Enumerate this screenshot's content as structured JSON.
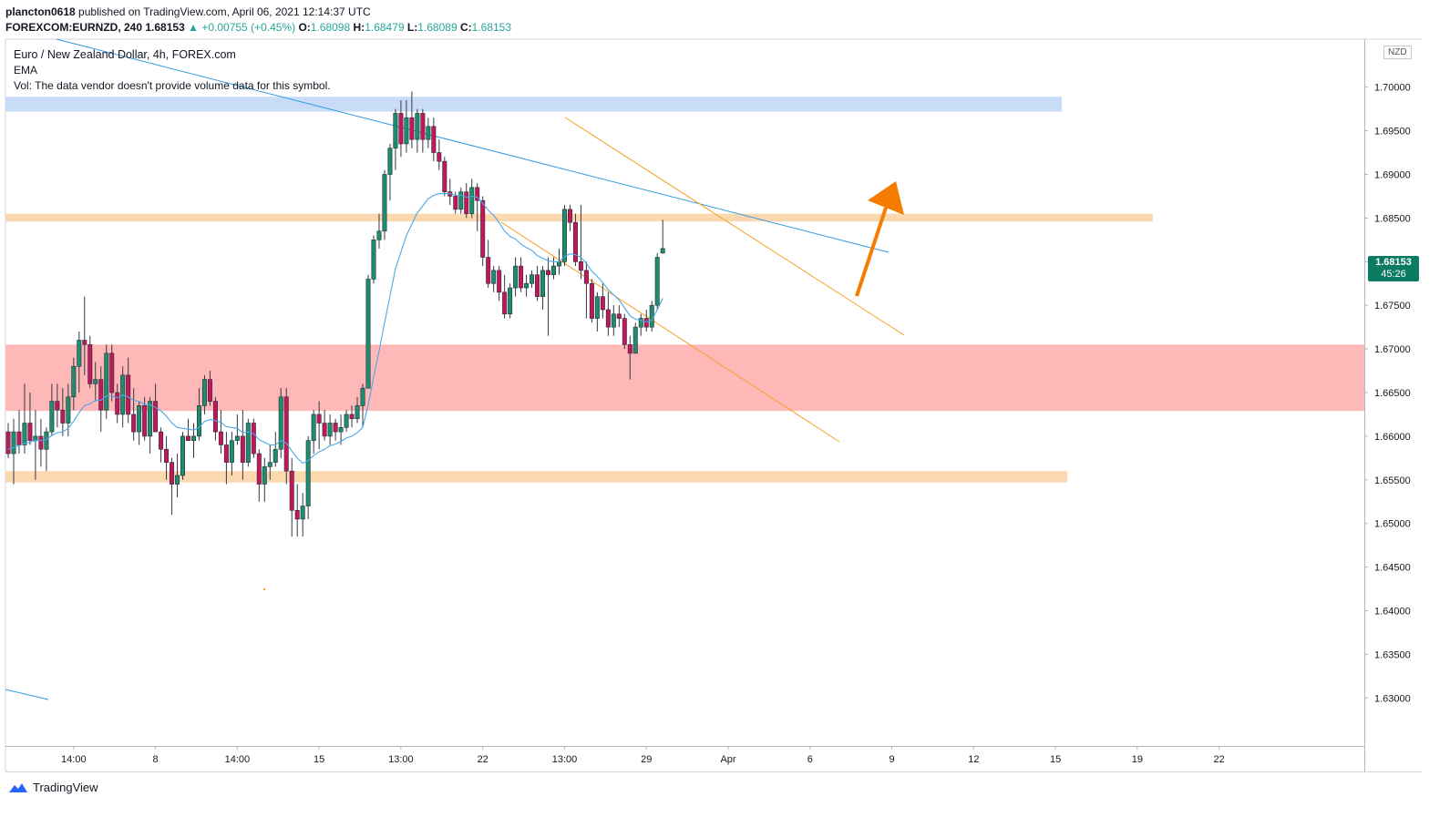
{
  "header": {
    "user": "plancton0618",
    "published": "published on TradingView.com, April 06, 2021 12:14:37 UTC",
    "symbol": "FOREXCOM:EURNZD, 240",
    "last": "1.68153",
    "arrow": "▲",
    "change": "+0.00755 (+0.45%)",
    "o_label": "O:",
    "o": "1.68098",
    "h_label": "H:",
    "h": "1.68479",
    "l_label": "L:",
    "l": "1.68089",
    "c_label": "C:",
    "c": "1.68153"
  },
  "legend": {
    "title": "Euro / New Zealand Dollar, 4h, FOREX.com",
    "ema": "EMA",
    "vol": "Vol: The data vendor doesn't provide volume data for this symbol."
  },
  "currency": "NZD",
  "price_tag": {
    "price": "1.68153",
    "countdown": "45:26"
  },
  "brand": "TradingView",
  "colors": {
    "up": "#26a69a",
    "down": "#ef5350",
    "candle_body_up": "#1e8c6e",
    "candle_body_down": "#c2185b",
    "ema": "#4aa8e6",
    "channel": "#f7a024",
    "trend": "#2f9be3",
    "zone_blue": "#c9dcf7",
    "zone_orange": "#fbd8b0",
    "zone_red": "#ffb8b8",
    "arrow": "#f57c00"
  },
  "chart_data": {
    "type": "candlestick",
    "title": "Euro / New Zealand Dollar, 4h, FOREX.com",
    "y_axis_side": "right",
    "ylim": [
      1.6245,
      1.7055
    ],
    "y_ticks": [
      "1.70000",
      "1.69500",
      "1.69000",
      "1.68500",
      "1.68000",
      "1.67500",
      "1.67000",
      "1.66500",
      "1.66000",
      "1.65500",
      "1.65000",
      "1.64500",
      "1.64000",
      "1.63500",
      "1.63000"
    ],
    "x_ticks": [
      "14:00",
      "8",
      "14:00",
      "15",
      "13:00",
      "22",
      "13:00",
      "29",
      "Apr",
      "6",
      "9",
      "12",
      "15",
      "19",
      "22"
    ],
    "x_tick_index": [
      12,
      27,
      42,
      57,
      72,
      87,
      102,
      117,
      132,
      147,
      162,
      177,
      192,
      207,
      222
    ],
    "candles": [
      [
        1.6605,
        1.6615,
        1.6575,
        1.658
      ],
      [
        1.658,
        1.662,
        1.6545,
        1.6605
      ],
      [
        1.6605,
        1.663,
        1.658,
        1.659
      ],
      [
        1.659,
        1.666,
        1.658,
        1.6615
      ],
      [
        1.6615,
        1.665,
        1.659,
        1.6595
      ],
      [
        1.6595,
        1.663,
        1.655,
        1.66
      ],
      [
        1.66,
        1.662,
        1.6565,
        1.6585
      ],
      [
        1.6585,
        1.661,
        1.656,
        1.6605
      ],
      [
        1.6605,
        1.666,
        1.66,
        1.664
      ],
      [
        1.664,
        1.666,
        1.661,
        1.663
      ],
      [
        1.663,
        1.6655,
        1.66,
        1.6615
      ],
      [
        1.6615,
        1.666,
        1.66,
        1.6645
      ],
      [
        1.6645,
        1.669,
        1.663,
        1.668
      ],
      [
        1.668,
        1.672,
        1.665,
        1.671
      ],
      [
        1.671,
        1.676,
        1.667,
        1.6705
      ],
      [
        1.6705,
        1.6715,
        1.6655,
        1.666
      ],
      [
        1.666,
        1.6685,
        1.664,
        1.6665
      ],
      [
        1.6665,
        1.668,
        1.6605,
        1.663
      ],
      [
        1.663,
        1.6705,
        1.662,
        1.6695
      ],
      [
        1.6695,
        1.6705,
        1.664,
        1.665
      ],
      [
        1.665,
        1.666,
        1.6615,
        1.6625
      ],
      [
        1.6625,
        1.668,
        1.661,
        1.667
      ],
      [
        1.667,
        1.669,
        1.6615,
        1.6625
      ],
      [
        1.6625,
        1.6655,
        1.6595,
        1.6605
      ],
      [
        1.6605,
        1.664,
        1.659,
        1.6635
      ],
      [
        1.6635,
        1.6645,
        1.6595,
        1.66
      ],
      [
        1.66,
        1.6645,
        1.658,
        1.664
      ],
      [
        1.664,
        1.666,
        1.6605,
        1.6605
      ],
      [
        1.6605,
        1.661,
        1.657,
        1.6585
      ],
      [
        1.6585,
        1.66,
        1.655,
        1.657
      ],
      [
        1.657,
        1.6575,
        1.651,
        1.6545
      ],
      [
        1.6545,
        1.658,
        1.653,
        1.6555
      ],
      [
        1.6555,
        1.6605,
        1.655,
        1.66
      ],
      [
        1.66,
        1.662,
        1.6595,
        1.6595
      ],
      [
        1.6595,
        1.6615,
        1.6575,
        1.66
      ],
      [
        1.66,
        1.6655,
        1.6595,
        1.6635
      ],
      [
        1.6635,
        1.667,
        1.6625,
        1.6665
      ],
      [
        1.6665,
        1.6675,
        1.6635,
        1.664
      ],
      [
        1.664,
        1.6645,
        1.6595,
        1.6605
      ],
      [
        1.6605,
        1.663,
        1.658,
        1.659
      ],
      [
        1.659,
        1.6605,
        1.6545,
        1.657
      ],
      [
        1.657,
        1.6605,
        1.6555,
        1.6595
      ],
      [
        1.6595,
        1.6625,
        1.659,
        1.66
      ],
      [
        1.66,
        1.663,
        1.655,
        1.657
      ],
      [
        1.657,
        1.662,
        1.6565,
        1.6615
      ],
      [
        1.6615,
        1.662,
        1.6575,
        1.658
      ],
      [
        1.658,
        1.6585,
        1.6525,
        1.6545
      ],
      [
        1.6545,
        1.6575,
        1.6525,
        1.6565
      ],
      [
        1.6565,
        1.659,
        1.655,
        1.657
      ],
      [
        1.657,
        1.6605,
        1.6565,
        1.6585
      ],
      [
        1.6585,
        1.6655,
        1.6575,
        1.6645
      ],
      [
        1.6645,
        1.6655,
        1.6545,
        1.656
      ],
      [
        1.656,
        1.6575,
        1.6485,
        1.6515
      ],
      [
        1.6515,
        1.6545,
        1.6485,
        1.6505
      ],
      [
        1.6505,
        1.6535,
        1.6485,
        1.652
      ],
      [
        1.652,
        1.66,
        1.6505,
        1.6595
      ],
      [
        1.6595,
        1.663,
        1.658,
        1.6625
      ],
      [
        1.6625,
        1.664,
        1.6585,
        1.6615
      ],
      [
        1.6615,
        1.663,
        1.6595,
        1.66
      ],
      [
        1.66,
        1.6625,
        1.659,
        1.6615
      ],
      [
        1.6615,
        1.662,
        1.6595,
        1.6605
      ],
      [
        1.6605,
        1.6625,
        1.659,
        1.661
      ],
      [
        1.661,
        1.663,
        1.6605,
        1.6625
      ],
      [
        1.6625,
        1.6635,
        1.661,
        1.662
      ],
      [
        1.662,
        1.6645,
        1.6615,
        1.6635
      ],
      [
        1.6635,
        1.666,
        1.661,
        1.6655
      ],
      [
        1.6655,
        1.6785,
        1.6655,
        1.678
      ],
      [
        1.678,
        1.683,
        1.6775,
        1.6825
      ],
      [
        1.6825,
        1.6855,
        1.6815,
        1.6835
      ],
      [
        1.6835,
        1.6905,
        1.6825,
        1.69
      ],
      [
        1.69,
        1.6935,
        1.687,
        1.693
      ],
      [
        1.693,
        1.6975,
        1.6905,
        1.697
      ],
      [
        1.697,
        1.6985,
        1.692,
        1.6935
      ],
      [
        1.6935,
        1.6985,
        1.6925,
        1.6965
      ],
      [
        1.6965,
        1.6995,
        1.693,
        1.694
      ],
      [
        1.694,
        1.6975,
        1.6925,
        1.697
      ],
      [
        1.697,
        1.6975,
        1.6925,
        1.694
      ],
      [
        1.694,
        1.6965,
        1.693,
        1.6955
      ],
      [
        1.6955,
        1.6965,
        1.6915,
        1.6925
      ],
      [
        1.6925,
        1.694,
        1.6905,
        1.6915
      ],
      [
        1.6915,
        1.692,
        1.6875,
        1.688
      ],
      [
        1.688,
        1.6895,
        1.6865,
        1.6875
      ],
      [
        1.6875,
        1.688,
        1.6855,
        1.686
      ],
      [
        1.686,
        1.6885,
        1.6855,
        1.688
      ],
      [
        1.688,
        1.689,
        1.685,
        1.6855
      ],
      [
        1.6855,
        1.6895,
        1.685,
        1.6885
      ],
      [
        1.6885,
        1.689,
        1.6835,
        1.687
      ],
      [
        1.687,
        1.6875,
        1.6795,
        1.6805
      ],
      [
        1.6805,
        1.6825,
        1.677,
        1.6775
      ],
      [
        1.6775,
        1.6795,
        1.6765,
        1.679
      ],
      [
        1.679,
        1.6795,
        1.6755,
        1.6765
      ],
      [
        1.6765,
        1.6785,
        1.6735,
        1.674
      ],
      [
        1.674,
        1.6775,
        1.6735,
        1.677
      ],
      [
        1.677,
        1.6805,
        1.676,
        1.6795
      ],
      [
        1.6795,
        1.6805,
        1.6765,
        1.677
      ],
      [
        1.677,
        1.6785,
        1.676,
        1.6775
      ],
      [
        1.6775,
        1.679,
        1.677,
        1.6785
      ],
      [
        1.6785,
        1.6795,
        1.6755,
        1.676
      ],
      [
        1.676,
        1.6795,
        1.6745,
        1.679
      ],
      [
        1.679,
        1.6805,
        1.6715,
        1.6785
      ],
      [
        1.6785,
        1.6805,
        1.678,
        1.6795
      ],
      [
        1.6795,
        1.6815,
        1.6785,
        1.68
      ],
      [
        1.68,
        1.6865,
        1.6795,
        1.686
      ],
      [
        1.686,
        1.6865,
        1.6835,
        1.6845
      ],
      [
        1.6845,
        1.6855,
        1.6795,
        1.68
      ],
      [
        1.68,
        1.6865,
        1.678,
        1.679
      ],
      [
        1.679,
        1.68,
        1.6735,
        1.6775
      ],
      [
        1.6775,
        1.678,
        1.673,
        1.6735
      ],
      [
        1.6735,
        1.6765,
        1.672,
        1.676
      ],
      [
        1.676,
        1.6775,
        1.6735,
        1.6745
      ],
      [
        1.6745,
        1.6765,
        1.6715,
        1.6725
      ],
      [
        1.6725,
        1.675,
        1.6715,
        1.674
      ],
      [
        1.674,
        1.675,
        1.6725,
        1.6735
      ],
      [
        1.6735,
        1.674,
        1.67,
        1.6705
      ],
      [
        1.6705,
        1.6715,
        1.6665,
        1.6695
      ],
      [
        1.6695,
        1.673,
        1.6695,
        1.6725
      ],
      [
        1.6725,
        1.674,
        1.6715,
        1.6735
      ],
      [
        1.6735,
        1.6745,
        1.672,
        1.6725
      ],
      [
        1.6725,
        1.6755,
        1.672,
        1.675
      ],
      [
        1.675,
        1.681,
        1.6745,
        1.6805
      ],
      [
        1.681,
        1.6848,
        1.6809,
        1.6815
      ]
    ],
    "ema": [
      1.6585,
      1.6587,
      1.6589,
      1.6592,
      1.6593,
      1.6595,
      1.6595,
      1.6596,
      1.6601,
      1.6604,
      1.6605,
      1.6609,
      1.6617,
      1.6627,
      1.6635,
      1.6637,
      1.6641,
      1.6641,
      1.6646,
      1.6646,
      1.6644,
      1.6647,
      1.6645,
      1.6641,
      1.664,
      1.6636,
      1.6636,
      1.6633,
      1.6629,
      1.6623,
      1.6615,
      1.661,
      1.6609,
      1.6608,
      1.6607,
      1.661,
      1.6617,
      1.6619,
      1.6618,
      1.6616,
      1.6611,
      1.661,
      1.6609,
      1.6604,
      1.6605,
      1.6603,
      1.6596,
      1.6593,
      1.659,
      1.659,
      1.6595,
      1.6592,
      1.6583,
      1.6575,
      1.6569,
      1.6572,
      1.6578,
      1.6582,
      1.6585,
      1.6589,
      1.6591,
      1.6594,
      1.6598,
      1.66,
      1.6604,
      1.661,
      1.6636,
      1.6668,
      1.6698,
      1.673,
      1.6761,
      1.6792,
      1.6811,
      1.683,
      1.6843,
      1.6856,
      1.6864,
      1.6872,
      1.6876,
      1.6878,
      1.6878,
      1.6878,
      1.6876,
      1.6876,
      1.6874,
      1.6875,
      1.6874,
      1.6867,
      1.6859,
      1.6853,
      1.6845,
      1.6835,
      1.6829,
      1.6826,
      1.682,
      1.6816,
      1.6813,
      1.6807,
      1.6804,
      1.6801,
      1.68,
      1.68,
      1.6806,
      1.6809,
      1.6808,
      1.6805,
      1.6798,
      1.6789,
      1.6783,
      1.6776,
      1.6768,
      1.6762,
      1.6756,
      1.6747,
      1.6738,
      1.6734,
      1.6733,
      1.6731,
      1.6733,
      1.6745,
      1.6758
    ]
  }
}
